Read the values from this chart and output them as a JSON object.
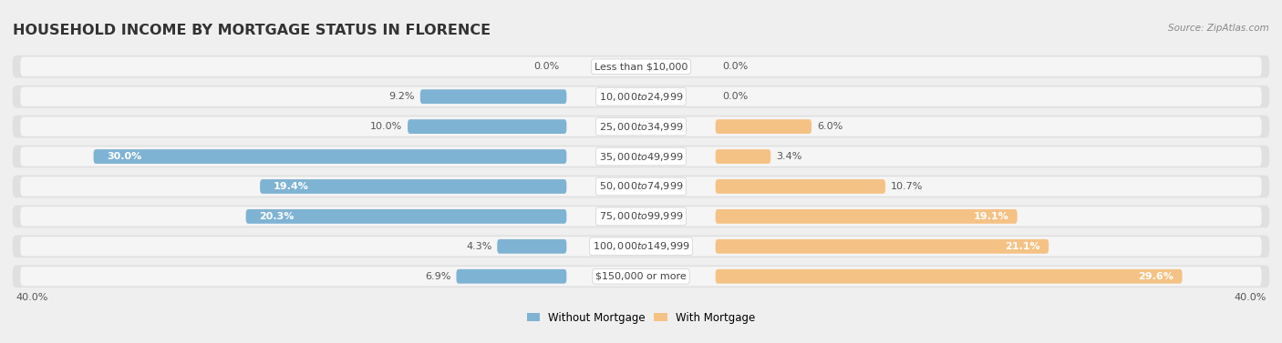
{
  "title": "HOUSEHOLD INCOME BY MORTGAGE STATUS IN FLORENCE",
  "source": "Source: ZipAtlas.com",
  "categories": [
    "Less than $10,000",
    "$10,000 to $24,999",
    "$25,000 to $34,999",
    "$35,000 to $49,999",
    "$50,000 to $74,999",
    "$75,000 to $99,999",
    "$100,000 to $149,999",
    "$150,000 or more"
  ],
  "without_mortgage": [
    0.0,
    9.2,
    10.0,
    30.0,
    19.4,
    20.3,
    4.3,
    6.9
  ],
  "with_mortgage": [
    0.0,
    0.0,
    6.0,
    3.4,
    10.7,
    19.1,
    21.1,
    29.6
  ],
  "color_without": "#7fb3d3",
  "color_with": "#f5c285",
  "xlim": 40.0,
  "background_color": "#efefef",
  "row_bg_color": "#e0e0e0",
  "row_inner_color": "#f5f5f5",
  "title_fontsize": 11.5,
  "bar_label_fontsize": 8,
  "legend_fontsize": 8.5,
  "source_fontsize": 7.5,
  "axis_label_fontsize": 8
}
